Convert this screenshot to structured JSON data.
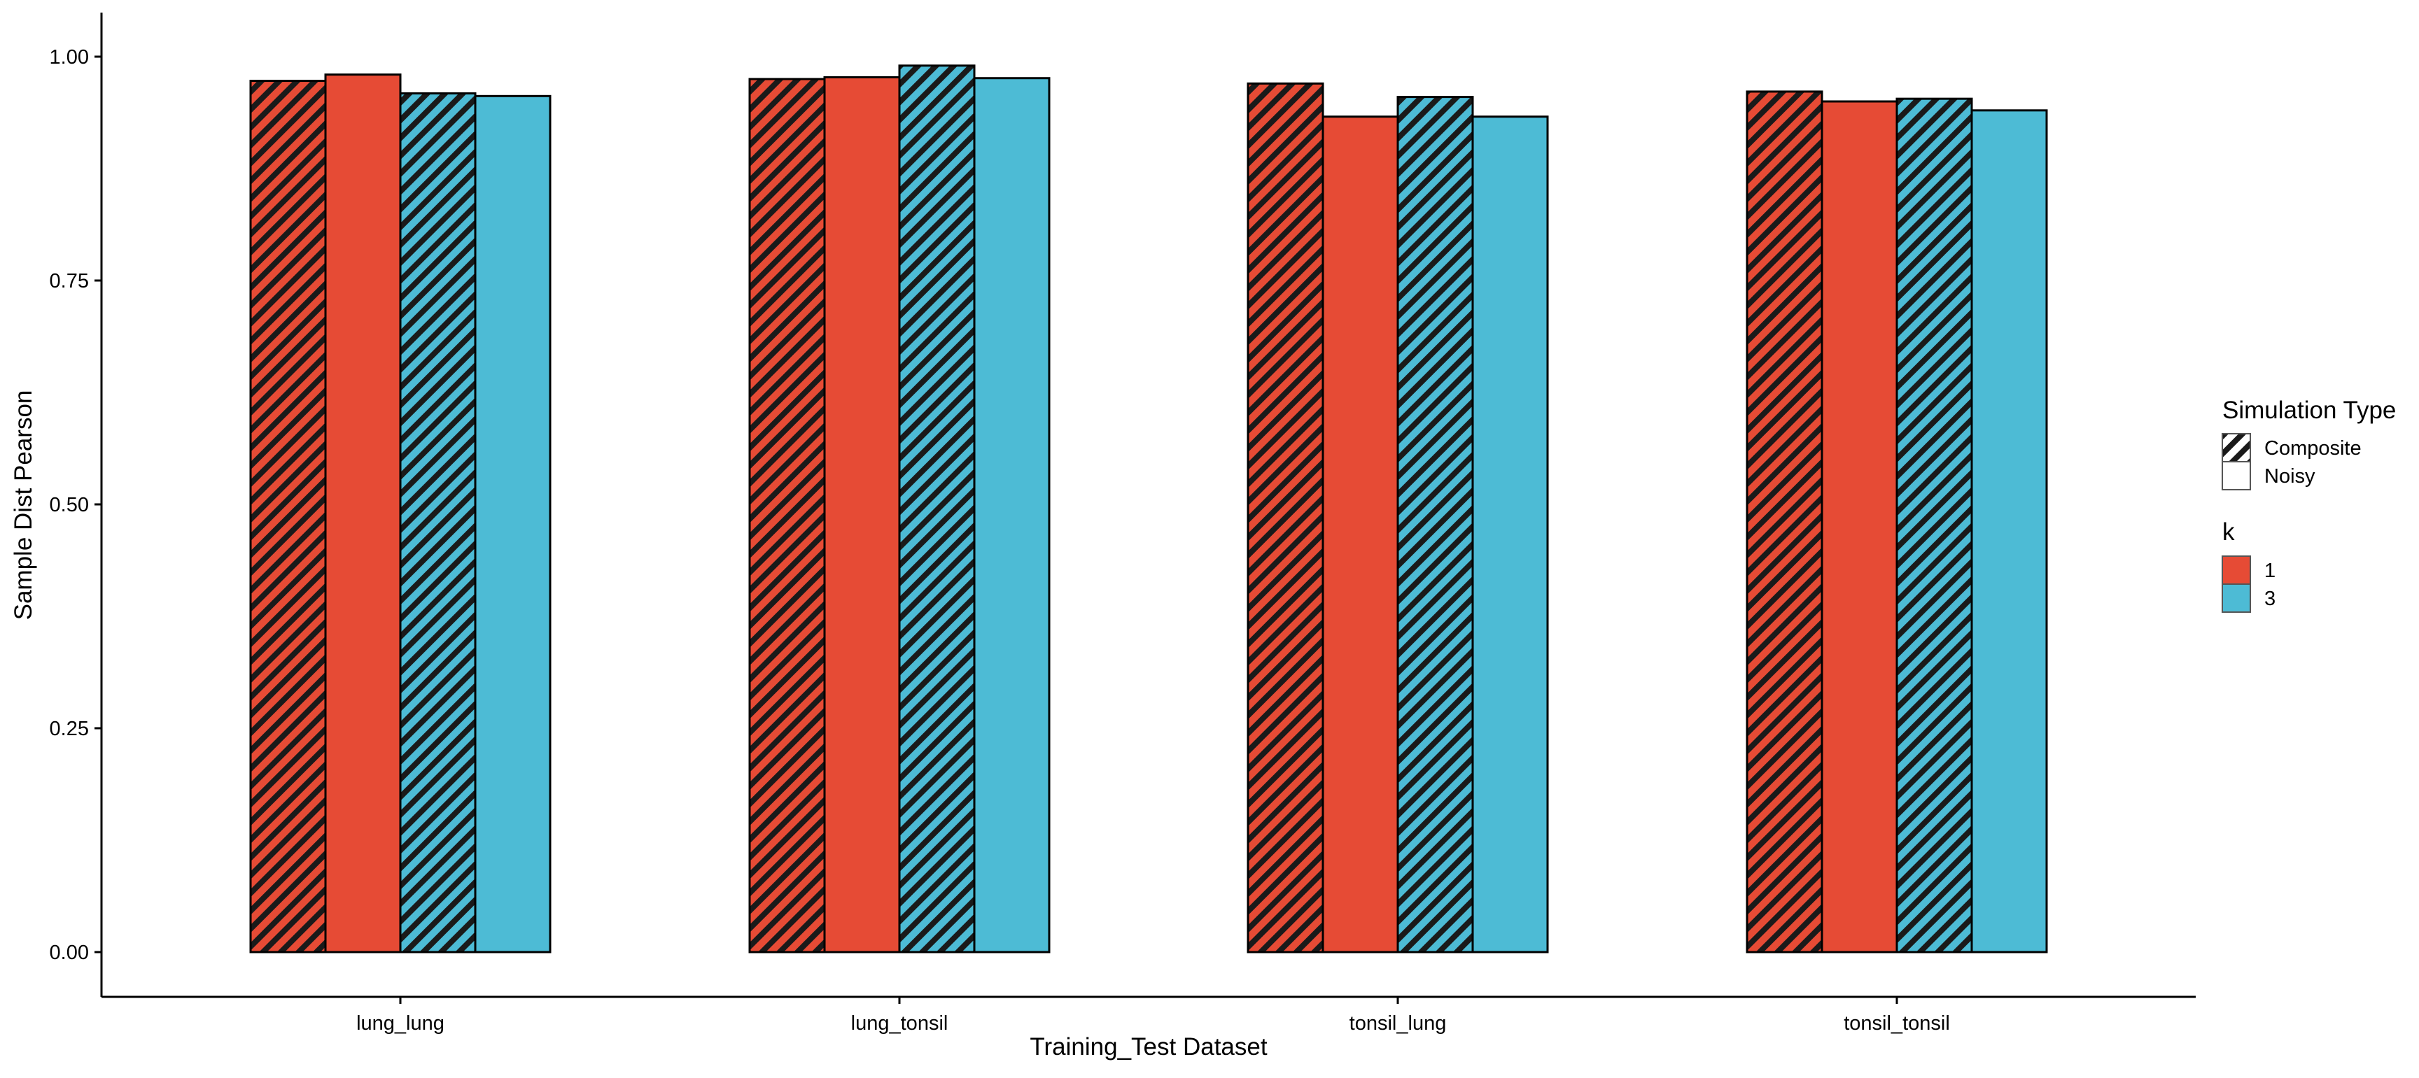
{
  "chart_data": {
    "type": "bar",
    "xlabel": "Training_Test Dataset",
    "ylabel": "Sample Dist Pearson",
    "ylim": [
      0,
      1.05
    ],
    "yticks": [
      0.0,
      0.25,
      0.5,
      0.75,
      1.0
    ],
    "ytick_labels": [
      "0.00",
      "0.25",
      "0.50",
      "0.75",
      "1.00"
    ],
    "categories": [
      "lung_lung",
      "lung_tonsil",
      "tonsil_lung",
      "tonsil_tonsil"
    ],
    "series": [
      {
        "k": "1",
        "simulation_type": "Composite",
        "pattern": "striped",
        "color": "#E64B35",
        "values": [
          0.973,
          0.975,
          0.97,
          0.961
        ]
      },
      {
        "k": "1",
        "simulation_type": "Noisy",
        "pattern": "solid",
        "color": "#E64B35",
        "values": [
          0.98,
          0.977,
          0.933,
          0.95
        ]
      },
      {
        "k": "3",
        "simulation_type": "Composite",
        "pattern": "striped",
        "color": "#4DBBD5",
        "values": [
          0.959,
          0.99,
          0.955,
          0.953
        ]
      },
      {
        "k": "3",
        "simulation_type": "Noisy",
        "pattern": "solid",
        "color": "#4DBBD5",
        "values": [
          0.956,
          0.976,
          0.933,
          0.94
        ]
      }
    ],
    "grid": false,
    "legend_position": "right",
    "legend": {
      "pattern_title": "Simulation Type",
      "pattern_entries": [
        "Composite",
        "Noisy"
      ],
      "color_title": "k",
      "color_entries": [
        "1",
        "3"
      ]
    }
  },
  "colors": {
    "k1": "#E64B35",
    "k3": "#4DBBD5",
    "stripe": "#1a1a1a",
    "outline": "#000000"
  }
}
